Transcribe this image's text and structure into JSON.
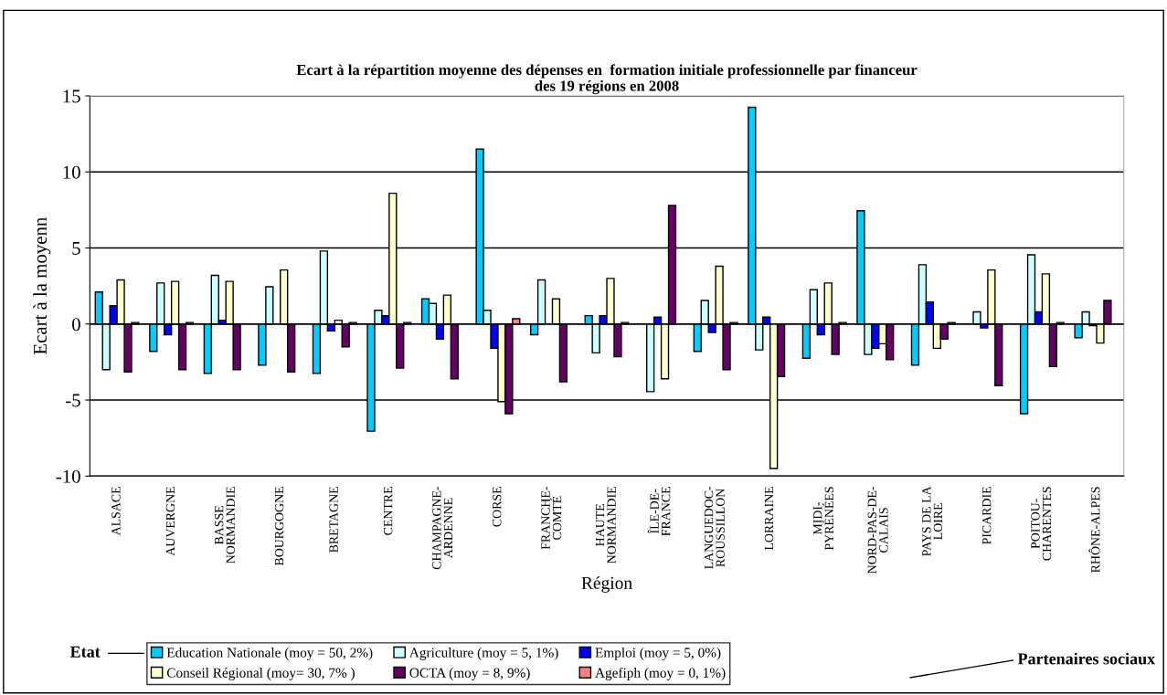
{
  "chart_data": {
    "type": "bar",
    "title": "Ecart à la répartition moyenne des dépenses en  formation initiale professionnelle par financeur\ndes 19 régions en 2008",
    "xlabel": "Région",
    "ylabel": "Ecart à la moyenn",
    "categories": [
      "ALSACE",
      "AUVERGNE",
      "BASSE\nNORMANDIE",
      "BOURGOGNE",
      "BRETAGNE",
      "CENTRE",
      "CHAMPAGNE-\nARDENNE",
      "CORSE",
      "FRANCHE-\nCOMTÉ",
      "HAUTE\nNORMANDIE",
      "ÎLE-DE-\nFRANCE",
      "LANGUEDOC-\nROUSSILLON",
      "LORRAINE",
      "MIDI-\nPYRÉNÉES",
      "NORD-PAS-DE-\nCALAIS",
      "PAYS DE LA\nLOIRE",
      "PICARDIE",
      "POITOU-\nCHARENTES",
      "RHÔNE-ALPES"
    ],
    "series": [
      {
        "name": "Education Nationale (moy = 50, 2%)",
        "color": "#00ccff",
        "values": [
          2.1,
          -1.8,
          -3.25,
          -2.7,
          -3.25,
          -7.05,
          1.65,
          11.5,
          -0.7,
          0.55,
          null,
          -1.8,
          14.25,
          -2.25,
          7.45,
          -2.7,
          null,
          -5.9,
          -0.9
        ]
      },
      {
        "name": "Agriculture (moy = 5, 1%)",
        "color": "#ccffff",
        "values": [
          -3.0,
          2.7,
          3.2,
          2.45,
          4.8,
          0.9,
          1.35,
          0.9,
          2.9,
          -1.9,
          -4.45,
          1.55,
          -1.7,
          2.25,
          -2.0,
          3.9,
          0.8,
          4.55,
          0.8
        ]
      },
      {
        "name": "Emploi (moy = 5, 0%)",
        "color": "#0000ff",
        "values": [
          1.2,
          -0.7,
          0.25,
          null,
          -0.45,
          0.55,
          -1.0,
          -1.6,
          null,
          0.55,
          0.45,
          -0.55,
          0.45,
          -0.7,
          -1.6,
          1.45,
          -0.25,
          0.8,
          -0.1
        ]
      },
      {
        "name": "Conseil Régional (moy= 30, 7% )",
        "color": "#ffffcc",
        "values": [
          2.9,
          2.8,
          2.8,
          3.55,
          0.25,
          8.6,
          1.9,
          -5.1,
          1.65,
          3.0,
          -3.6,
          3.8,
          -9.5,
          2.7,
          -1.3,
          -1.6,
          3.55,
          3.3,
          -1.25
        ]
      },
      {
        "name": "OCTA (moy = 8, 9%)",
        "color": "#660066",
        "values": [
          -3.15,
          -3.0,
          -3.0,
          -3.15,
          -1.5,
          -2.9,
          -3.6,
          -5.9,
          -3.8,
          -2.15,
          7.8,
          -3.0,
          -3.45,
          -2.0,
          -2.35,
          -1.0,
          -4.05,
          -2.8,
          1.55
        ]
      },
      {
        "name": "Agefiph (moy = 0, 1%)",
        "color": "#ff8080",
        "values": [
          0.1,
          0.1,
          null,
          null,
          0.1,
          0.1,
          null,
          0.35,
          null,
          0.1,
          null,
          0.1,
          null,
          0.1,
          null,
          0.1,
          null,
          0.1,
          null
        ]
      }
    ],
    "ylim": [
      -10,
      15
    ],
    "yticks": [
      -10,
      -5,
      0,
      5,
      10,
      15
    ],
    "grid": "y",
    "legend": "bottom",
    "annotations": [
      "Etat",
      "Partenaires sociaux"
    ]
  }
}
